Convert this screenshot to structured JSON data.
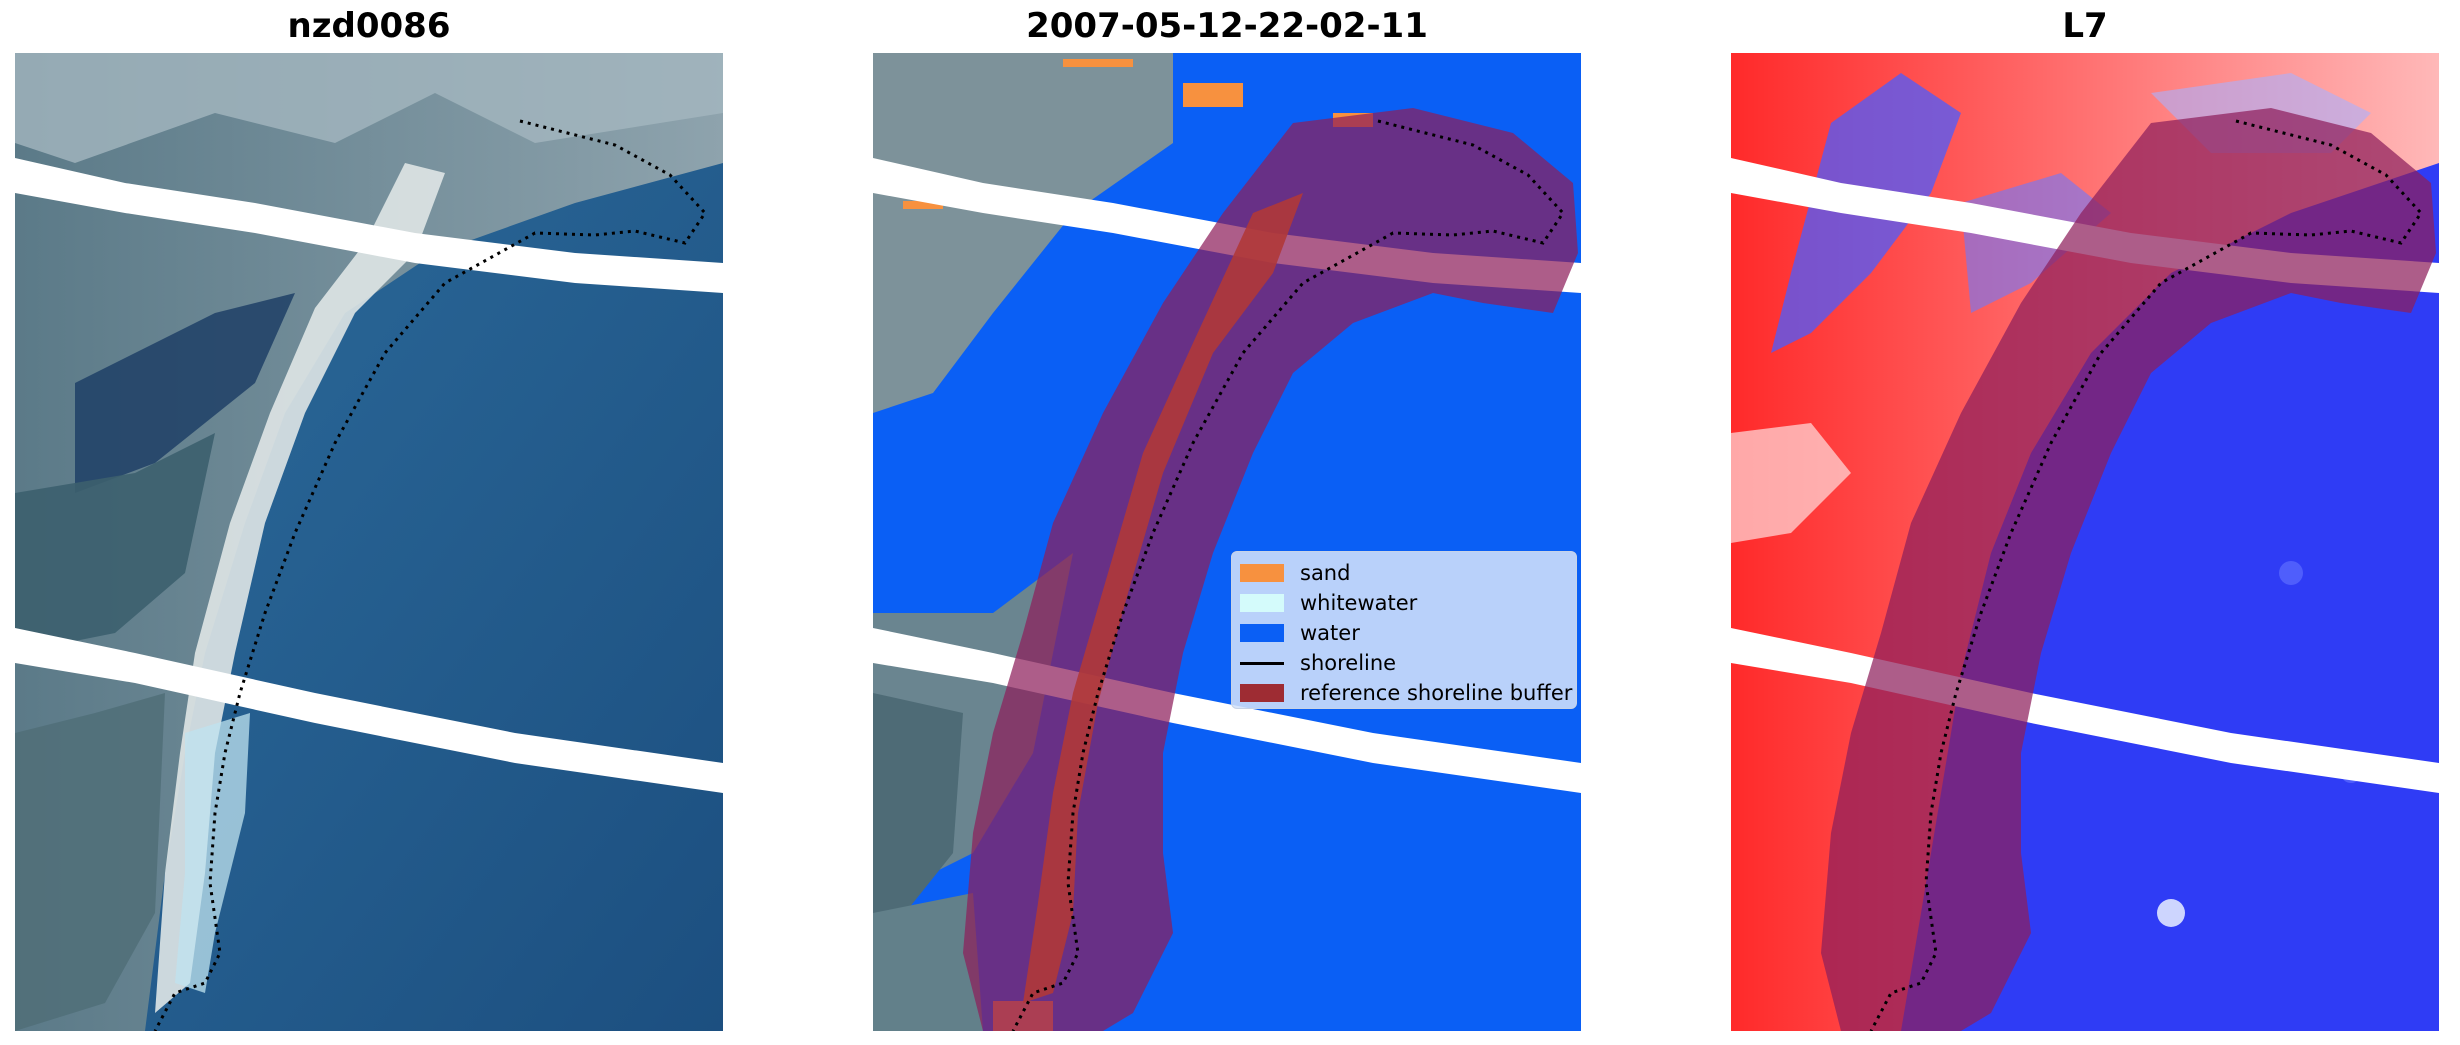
{
  "panels": [
    {
      "title": "nzd0086"
    },
    {
      "title": "2007-05-12-22-02-11"
    },
    {
      "title": "L7"
    }
  ],
  "legend": {
    "items": [
      {
        "label": "sand",
        "color": "#f7913f",
        "kind": "patch"
      },
      {
        "label": "whitewater",
        "color": "#d4fbfb",
        "kind": "patch"
      },
      {
        "label": "water",
        "color": "#0a5ff5",
        "kind": "patch"
      },
      {
        "label": "shoreline",
        "color": "#000000",
        "kind": "line"
      },
      {
        "label": "reference shoreline buffer",
        "color": "#9e2c33",
        "kind": "patch"
      }
    ]
  },
  "colors": {
    "ocean": "#1e5f93",
    "land": "#6f8a96",
    "buffer_overlay": "#8e1f5c",
    "water_class": "#0a5ff5",
    "index_positive": "#ff3333",
    "index_negative": "#3333ff"
  }
}
